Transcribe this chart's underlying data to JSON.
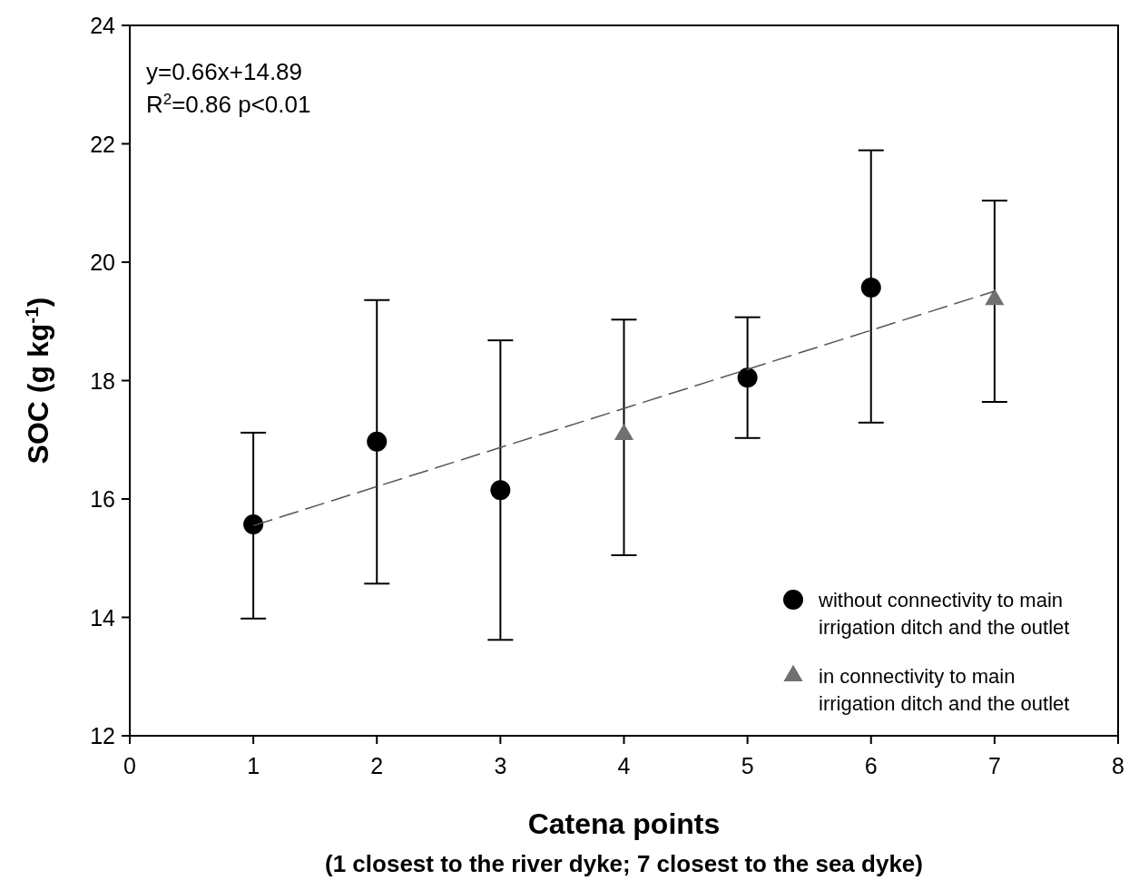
{
  "chart_data": {
    "type": "scatter",
    "xlabel": "Catena points",
    "ylabel": "SOC (g kg$^{-1}$)",
    "xlim": [
      0,
      8
    ],
    "xticks": [
      0,
      1,
      2,
      3,
      4,
      5,
      6,
      7,
      8
    ],
    "ylim": [
      12,
      24
    ],
    "yticks": [
      12,
      14,
      16,
      18,
      20,
      22,
      24
    ],
    "grid": false,
    "legend": "bottom right",
    "annotations": [
      "y=0.66x+14.89",
      "R$^{2}$=0.86  p<0.01",
      "(1 closest to the river dyke; 7 closest to the sea dyke)"
    ],
    "series": [
      {
        "name": "without connectivity to main irrigation ditch and the outlet",
        "marker": "circle",
        "color": "#000000",
        "x": [
          1,
          2,
          3,
          5,
          6
        ],
        "values": [
          15.57,
          16.97,
          16.15,
          18.05,
          19.57
        ],
        "errors": [
          [
            13.98,
            17.12
          ],
          [
            14.57,
            19.36
          ],
          [
            13.62,
            18.68
          ],
          [
            17.03,
            19.07
          ],
          [
            17.29,
            21.89
          ]
        ]
      },
      {
        "name": "in connectivity to main irrigation ditch and the outlet",
        "marker": "triangle",
        "color": "#707070",
        "x": [
          4,
          7
        ],
        "values": [
          17.09,
          19.37
        ],
        "errors": [
          [
            15.05,
            19.03
          ],
          [
            17.64,
            21.04
          ]
        ]
      },
      {
        "type": "line",
        "line_style": "dashed",
        "marker": "none",
        "color": "#555555",
        "x": [
          1,
          7
        ],
        "values": [
          15.55,
          19.51
        ]
      }
    ]
  }
}
